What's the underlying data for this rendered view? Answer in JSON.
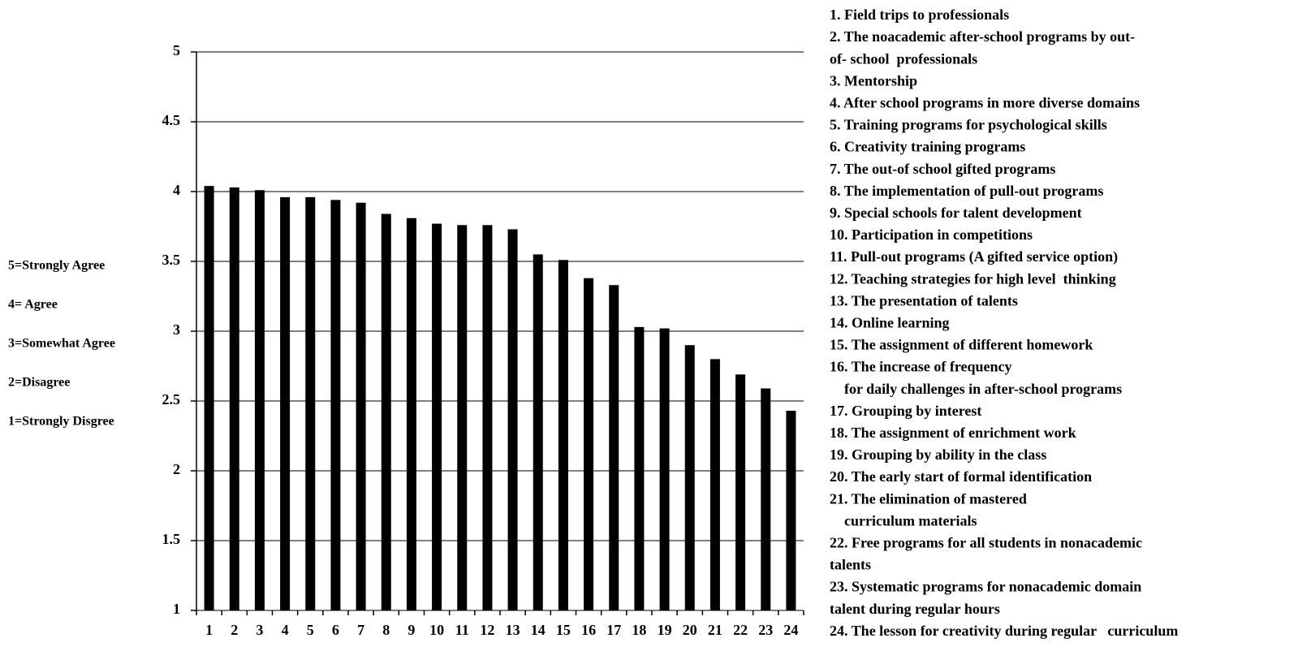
{
  "chart_data": {
    "type": "bar",
    "categories": [
      "1",
      "2",
      "3",
      "4",
      "5",
      "6",
      "7",
      "8",
      "9",
      "10",
      "11",
      "12",
      "13",
      "14",
      "15",
      "16",
      "17",
      "18",
      "19",
      "20",
      "21",
      "22",
      "23",
      "24"
    ],
    "values": [
      4.04,
      4.03,
      4.01,
      3.96,
      3.96,
      3.94,
      3.92,
      3.84,
      3.81,
      3.77,
      3.76,
      3.76,
      3.73,
      3.55,
      3.51,
      3.38,
      3.33,
      3.03,
      3.02,
      2.9,
      2.8,
      2.69,
      2.59,
      2.43
    ],
    "color": "#000000",
    "ylim": [
      1,
      5
    ],
    "yticks": [
      1,
      1.5,
      2,
      2.5,
      3,
      3.5,
      4,
      4.5,
      5
    ],
    "grid": true,
    "scale_key": [
      "5=Strongly Agree",
      "4= Agree",
      "3=Somewhat Agree",
      "2=Disagree",
      "1=Strongly Disgree"
    ],
    "item_list": [
      [
        "1. Field trips to professionals"
      ],
      [
        "2. The noacademic after-school programs by out-",
        "of- school  professionals"
      ],
      [
        "3. Mentorship"
      ],
      [
        "4. After school programs in more diverse domains"
      ],
      [
        "5. Training programs for psychological skills"
      ],
      [
        "6. Creativity training programs"
      ],
      [
        "7. The out-of school gifted programs"
      ],
      [
        "8. The implementation of pull-out programs"
      ],
      [
        "9. Special schools for talent development"
      ],
      [
        "10. Participation in competitions"
      ],
      [
        "11. Pull-out programs (A gifted service option)"
      ],
      [
        "12. Teaching strategies for high level  thinking"
      ],
      [
        "13. The presentation of talents"
      ],
      [
        "14. Online learning"
      ],
      [
        "15. The assignment of different homework"
      ],
      [
        "16. The increase of frequency",
        "    for daily challenges in after-school programs"
      ],
      [
        "17. Grouping by interest"
      ],
      [
        "18. The assignment of enrichment work"
      ],
      [
        "19. Grouping by ability in the class"
      ],
      [
        "20. The early start of formal identification"
      ],
      [
        "21. The elimination of mastered",
        "    curriculum materials"
      ],
      [
        "22. Free programs for all students in nonacademic",
        "talents"
      ],
      [
        "23. Systematic programs for nonacademic domain",
        "talent during regular hours"
      ],
      [
        "24. The lesson for creativity during regular   curriculum"
      ]
    ]
  }
}
